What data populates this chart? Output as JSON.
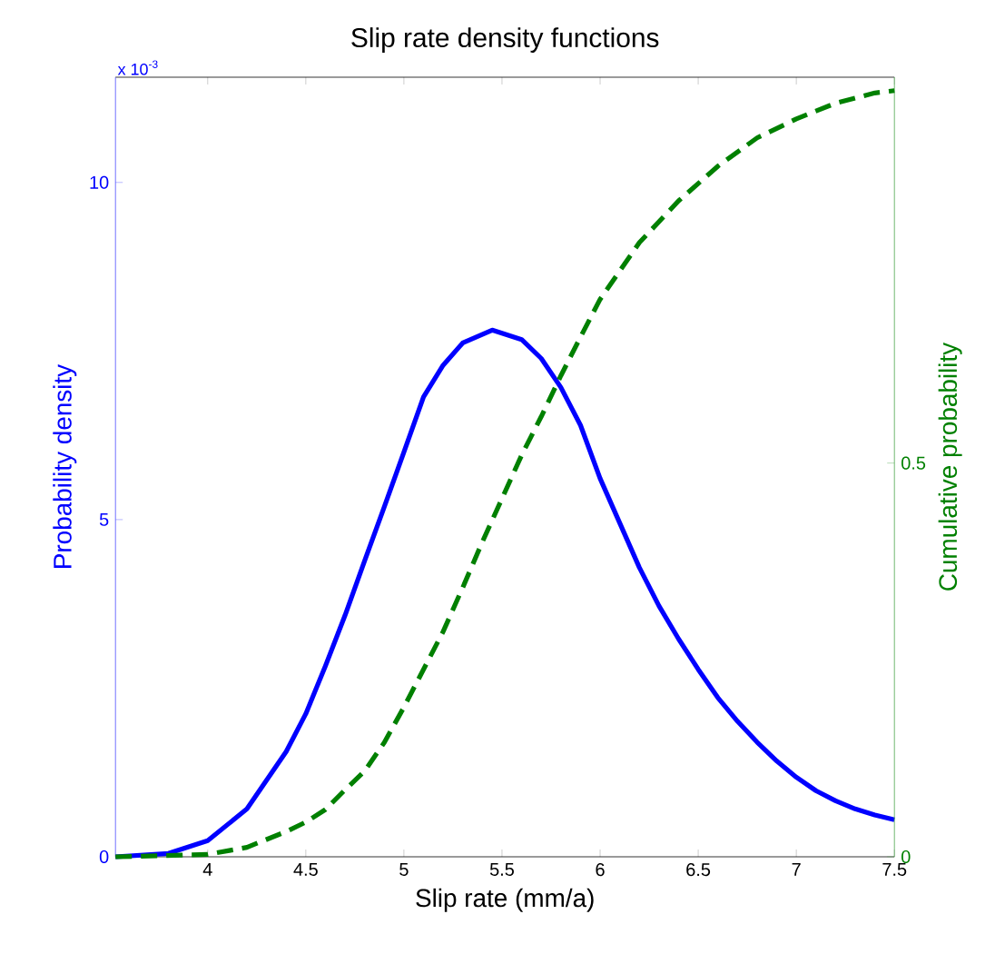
{
  "chart_data": {
    "type": "line",
    "title": "Slip rate density functions",
    "xlabel": "Slip rate (mm/a)",
    "ylabel": "Probability density",
    "y2label": "Cumulative probability",
    "annotations": [
      "x 10$^{-3}$"
    ],
    "xlim": [
      3.53,
      7.5
    ],
    "xticks": [
      4,
      4.5,
      5,
      5.5,
      6,
      6.5,
      7,
      7.5
    ],
    "ylim": [
      0,
      11.56
    ],
    "yticks": [
      0,
      5,
      10
    ],
    "y2lim": [
      0,
      0.99
    ],
    "y2ticks": [
      0,
      0.5
    ],
    "series": [
      {
        "color": "#0000ff",
        "line_style": "solid",
        "x": [
          3.53,
          3.8,
          4.0,
          4.2,
          4.4,
          4.5,
          4.6,
          4.7,
          4.8,
          4.9,
          5.0,
          5.1,
          5.2,
          5.3,
          5.45,
          5.6,
          5.7,
          5.8,
          5.9,
          6.0,
          6.1,
          6.2,
          6.3,
          6.4,
          6.5,
          6.6,
          6.7,
          6.8,
          6.9,
          7.0,
          7.1,
          7.2,
          7.3,
          7.4,
          7.5
        ],
        "values": [
          0.0,
          0.05,
          0.24,
          0.71,
          1.56,
          2.12,
          2.83,
          3.58,
          4.39,
          5.19,
          6.0,
          6.82,
          7.29,
          7.62,
          7.81,
          7.67,
          7.39,
          6.96,
          6.4,
          5.61,
          4.95,
          4.29,
          3.72,
          3.23,
          2.78,
          2.36,
          2.01,
          1.7,
          1.42,
          1.18,
          0.98,
          0.83,
          0.71,
          0.62,
          0.55
        ]
      },
      {
        "color": "#008000",
        "line_style": "dashed",
        "axis": "y2",
        "x": [
          3.53,
          4.0,
          4.2,
          4.4,
          4.5,
          4.6,
          4.7,
          4.8,
          4.9,
          5.0,
          5.1,
          5.2,
          5.3,
          5.4,
          5.5,
          5.6,
          5.7,
          5.8,
          5.9,
          6.0,
          6.2,
          6.4,
          6.6,
          6.8,
          7.0,
          7.2,
          7.4,
          7.5
        ],
        "values": [
          0.0,
          0.003,
          0.012,
          0.032,
          0.044,
          0.06,
          0.085,
          0.109,
          0.145,
          0.19,
          0.238,
          0.286,
          0.342,
          0.4,
          0.455,
          0.51,
          0.559,
          0.611,
          0.66,
          0.708,
          0.78,
          0.833,
          0.877,
          0.913,
          0.937,
          0.957,
          0.97,
          0.973
        ]
      }
    ]
  }
}
